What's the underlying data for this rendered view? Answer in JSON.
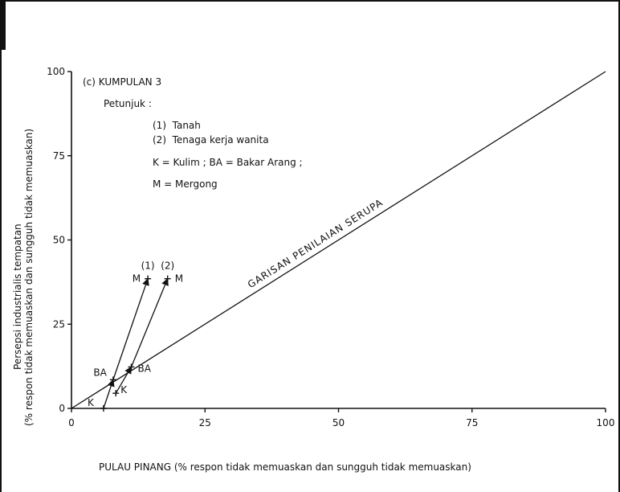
{
  "chart_data": {
    "type": "scatter",
    "panel_label": "(c) KUMPULAN 3",
    "xlabel": "PULAU PINANG (% respon tidak memuaskan dan sungguh tidak memuaskan)",
    "ylabel_line1": "Persepsi industrialis tempatan",
    "ylabel_line2": "(% respon tidak memuaskan dan sungguh tidak memuaskan)",
    "xlim": [
      0,
      100
    ],
    "ylim": [
      0,
      100
    ],
    "xticks": [
      0,
      25,
      50,
      75,
      100
    ],
    "yticks": [
      0,
      25,
      50,
      75,
      100
    ],
    "grid": false,
    "legend": {
      "heading": "Petunjuk :",
      "lines": [
        "(1)  Tanah",
        "(2)  Tenaga kerja wanita",
        "K = Kulim ; BA = Bakar Arang ;",
        "M = Mergong"
      ]
    },
    "diagonal": {
      "label": "GARISAN PENILAIAN SERUPA",
      "from": [
        0,
        0
      ],
      "to": [
        100,
        100
      ]
    },
    "series": [
      {
        "name": "(1)",
        "points": [
          {
            "label": "K",
            "x": 6,
            "y": 0
          },
          {
            "label": "BA",
            "x": 7.8,
            "y": 8.5
          },
          {
            "label": "M",
            "x": 14.3,
            "y": 38.5
          }
        ]
      },
      {
        "name": "(2)",
        "points": [
          {
            "label": "K",
            "x": 8.3,
            "y": 4.5
          },
          {
            "label": "BA",
            "x": 11.2,
            "y": 12.3
          },
          {
            "label": "M",
            "x": 18,
            "y": 38.5
          }
        ]
      }
    ]
  }
}
